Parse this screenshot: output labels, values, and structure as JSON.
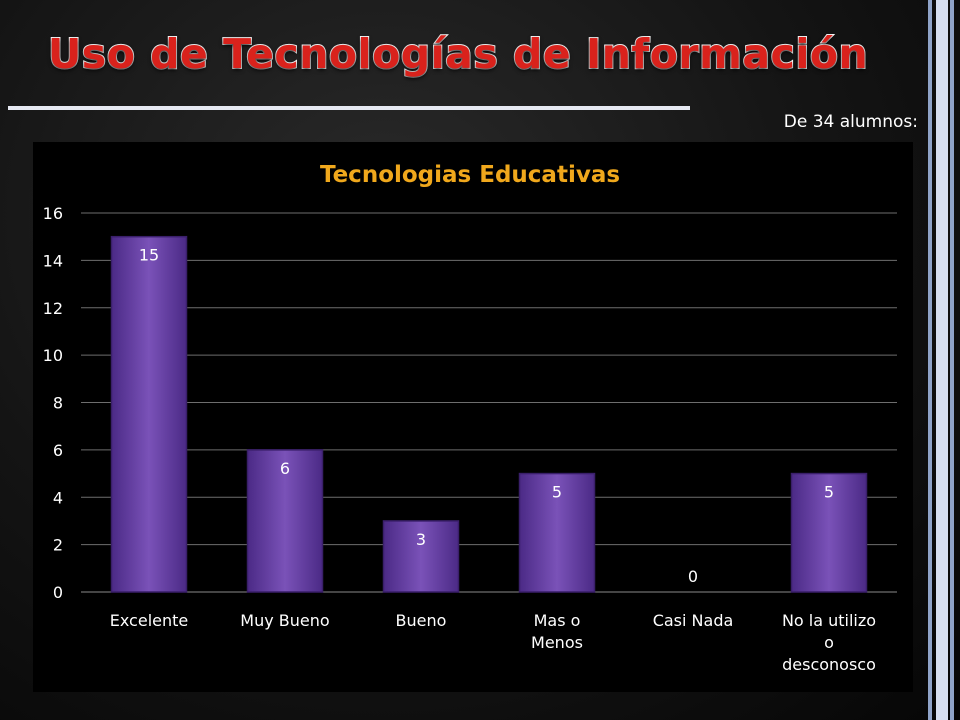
{
  "slide": {
    "title": "Uso de Tecnologías de Información",
    "subtitle": "De 34 alumnos:"
  },
  "colors": {
    "title": "#d9221c",
    "chart_title": "#f0a81c",
    "bar": "#6a44a4",
    "text": "#ffffff"
  },
  "chart_data": {
    "type": "bar",
    "title": "Tecnologias Educativas",
    "categories": [
      [
        "Excelente"
      ],
      [
        "Muy Bueno"
      ],
      [
        "Bueno"
      ],
      [
        "Mas o",
        "Menos"
      ],
      [
        "Casi Nada"
      ],
      [
        "No la utilizo",
        "o",
        "desconosco"
      ]
    ],
    "values": [
      15,
      6,
      3,
      5,
      0,
      5
    ],
    "ylim": [
      0,
      16
    ],
    "yticks": [
      0,
      2,
      4,
      6,
      8,
      10,
      12,
      14,
      16
    ],
    "grid": true,
    "data_labels": true
  }
}
